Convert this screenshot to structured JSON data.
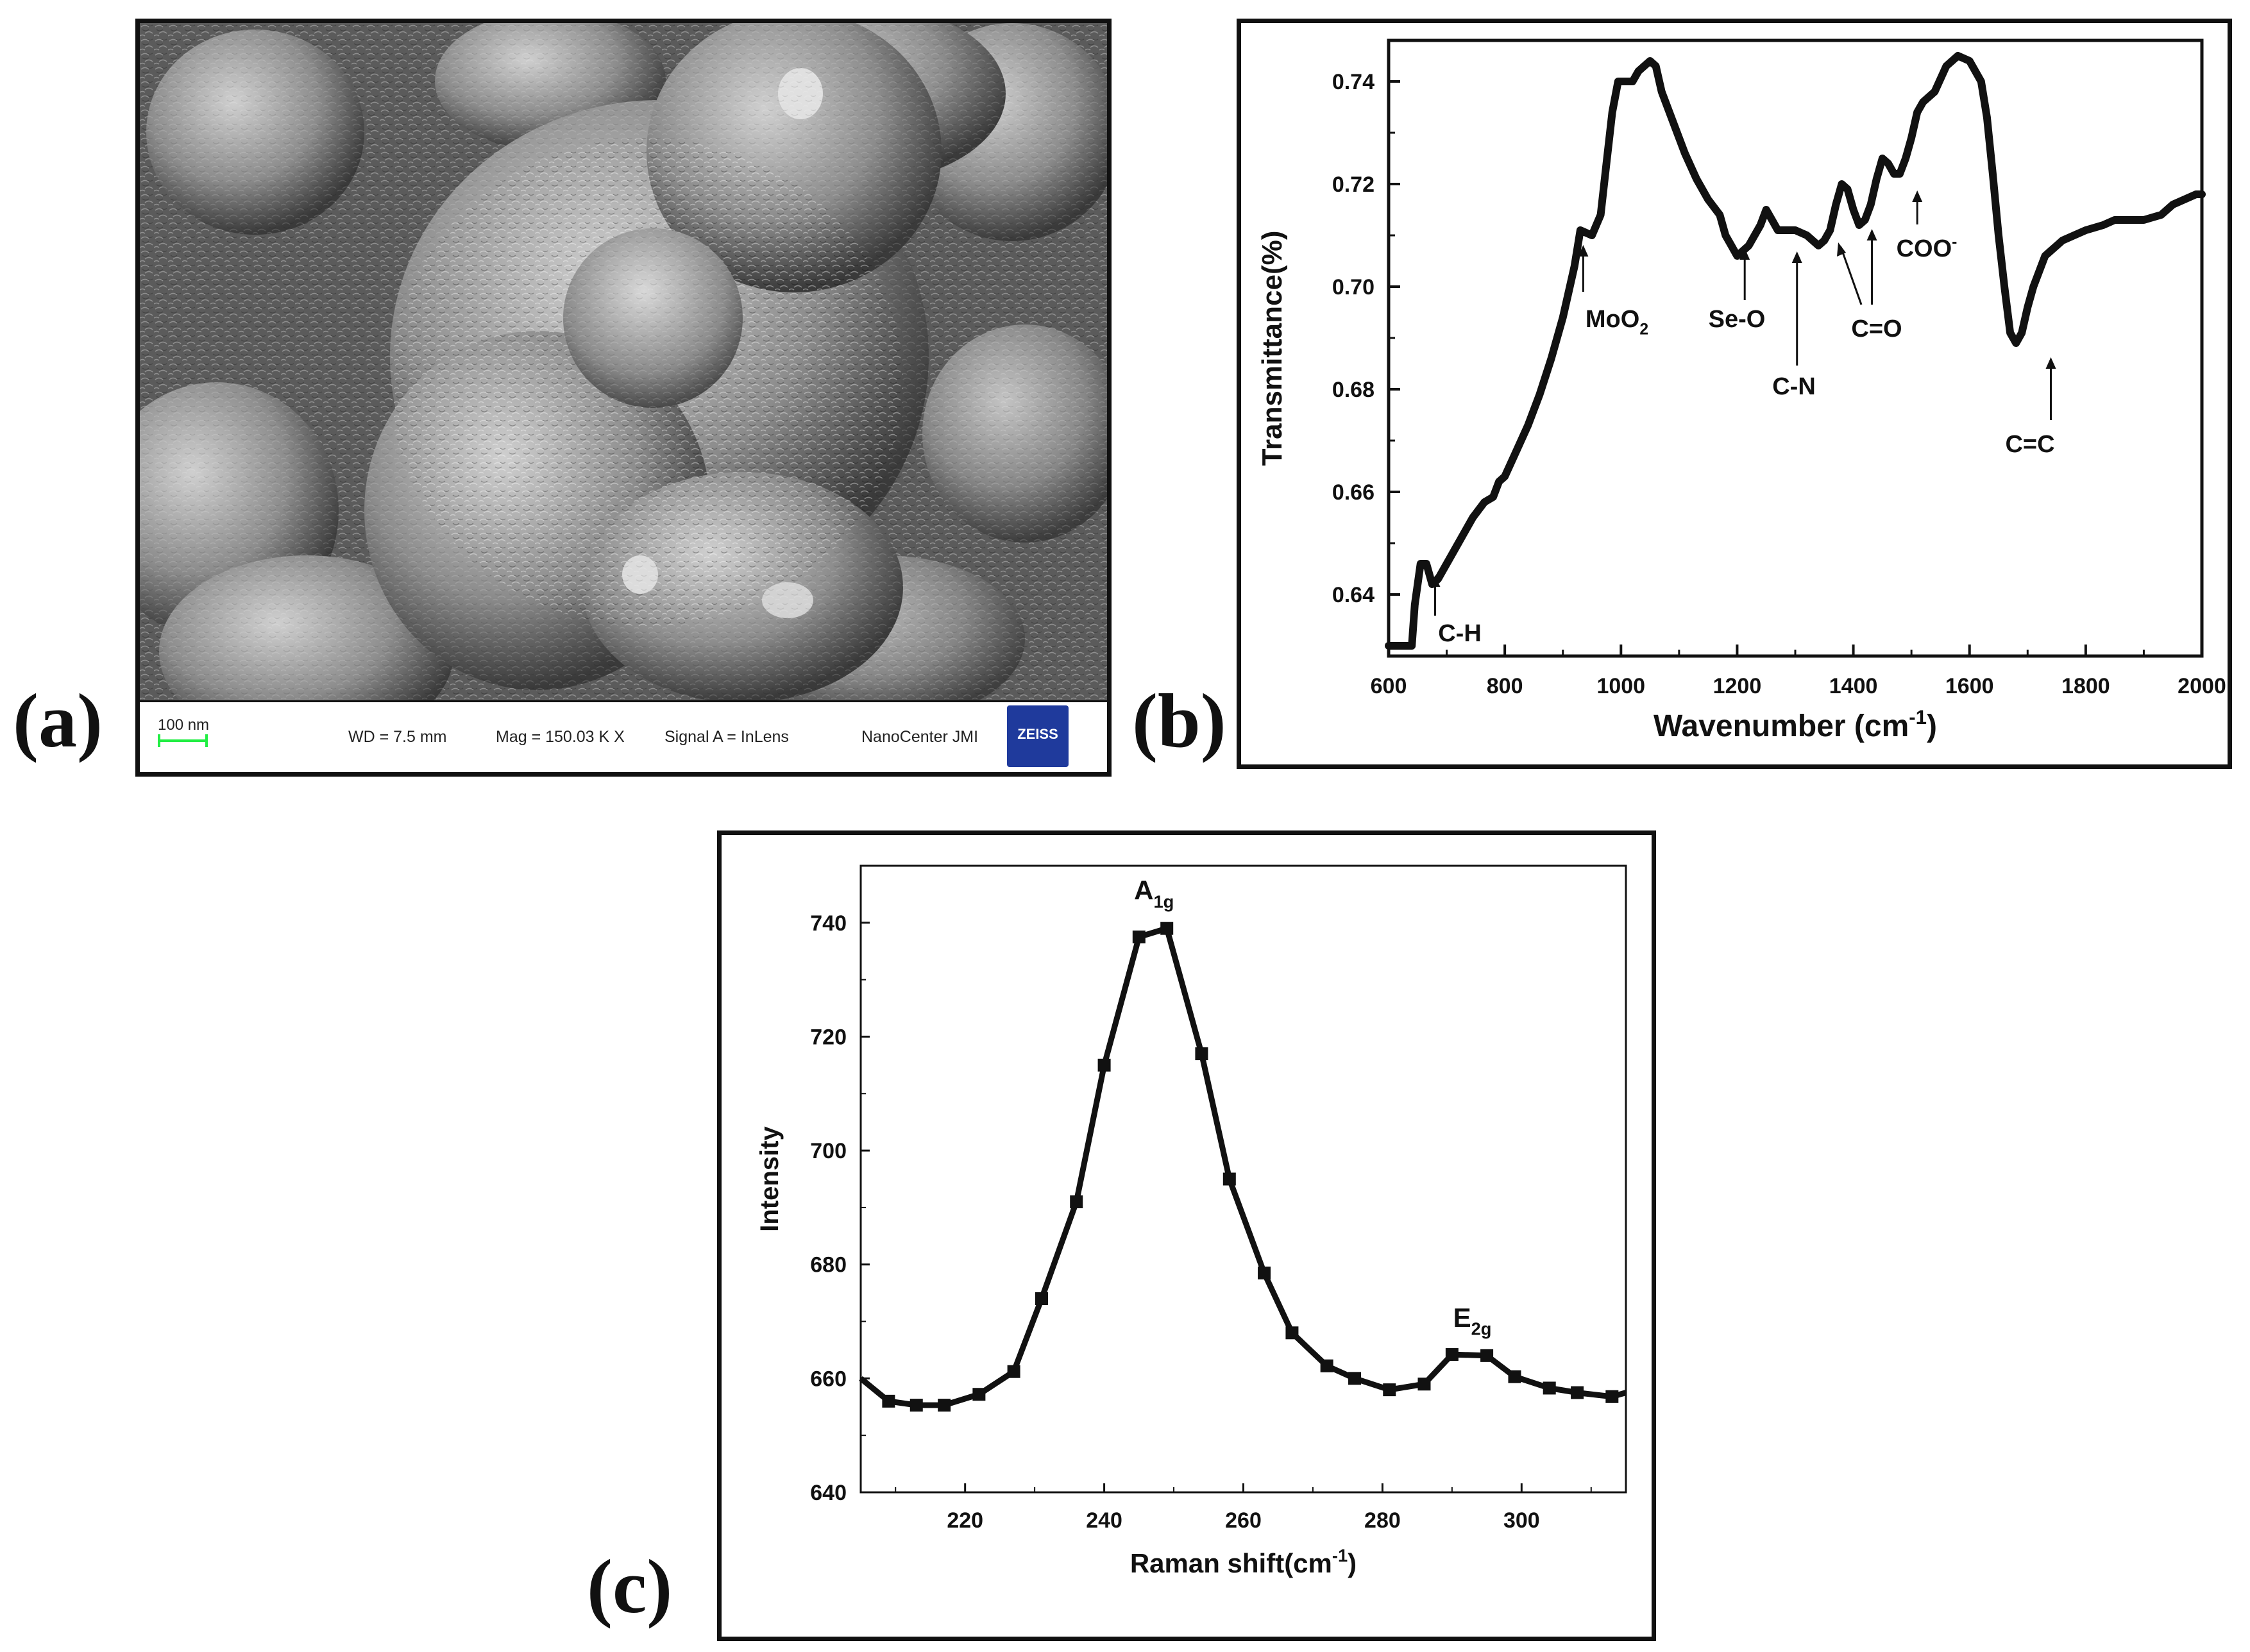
{
  "panels": {
    "a": {
      "letter": "(a)"
    },
    "b": {
      "letter": "(b)"
    },
    "c": {
      "letter": "(c)"
    }
  },
  "sem": {
    "scale_bar": "100 nm",
    "wd": "WD =  7.5 mm",
    "mag": "Mag =  150.03 K X",
    "signal": "Signal A = InLens",
    "center": "NanoCenter JMI",
    "logo": "ZEISS",
    "scale_bar_color": "#22ee44"
  },
  "chart_data": [
    {
      "type": "line",
      "panel": "b",
      "xlabel": "Wavenumber (cm",
      "xlabel_sup": "-1",
      "xlabel_end": ")",
      "ylabel": "Transmittance(%)",
      "xlim": [
        600,
        2000
      ],
      "ylim": [
        0.628,
        0.748
      ],
      "xticks": [
        600,
        800,
        1000,
        1200,
        1400,
        1600,
        1800,
        2000
      ],
      "yticks": [
        0.64,
        0.66,
        0.68,
        0.7,
        0.72,
        0.74
      ],
      "ytick_labels": [
        "0.64",
        "0.66",
        "0.68",
        "0.70",
        "0.72",
        "0.74"
      ],
      "x": [
        600,
        630,
        640,
        645,
        655,
        665,
        675,
        685,
        700,
        720,
        745,
        765,
        780,
        790,
        800,
        820,
        840,
        860,
        880,
        900,
        920,
        930,
        950,
        965,
        975,
        985,
        995,
        1005,
        1020,
        1030,
        1040,
        1050,
        1060,
        1070,
        1090,
        1110,
        1130,
        1150,
        1170,
        1180,
        1190,
        1200,
        1210,
        1220,
        1240,
        1250,
        1260,
        1270,
        1280,
        1290,
        1300,
        1320,
        1340,
        1350,
        1360,
        1370,
        1380,
        1390,
        1400,
        1410,
        1420,
        1430,
        1440,
        1450,
        1460,
        1470,
        1480,
        1490,
        1500,
        1510,
        1520,
        1540,
        1560,
        1580,
        1600,
        1620,
        1630,
        1640,
        1650,
        1660,
        1670,
        1680,
        1690,
        1700,
        1710,
        1720,
        1730,
        1740,
        1750,
        1760,
        1780,
        1800,
        1830,
        1850,
        1870,
        1900,
        1930,
        1950,
        1970,
        1990,
        2000
      ],
      "y": [
        0.63,
        0.63,
        0.63,
        0.638,
        0.646,
        0.646,
        0.642,
        0.643,
        0.646,
        0.65,
        0.655,
        0.658,
        0.659,
        0.662,
        0.663,
        0.668,
        0.673,
        0.679,
        0.686,
        0.694,
        0.704,
        0.711,
        0.71,
        0.714,
        0.724,
        0.734,
        0.74,
        0.74,
        0.74,
        0.742,
        0.743,
        0.744,
        0.743,
        0.738,
        0.732,
        0.726,
        0.721,
        0.717,
        0.714,
        0.71,
        0.708,
        0.706,
        0.707,
        0.708,
        0.712,
        0.715,
        0.713,
        0.711,
        0.711,
        0.711,
        0.711,
        0.71,
        0.708,
        0.709,
        0.711,
        0.716,
        0.72,
        0.719,
        0.715,
        0.712,
        0.713,
        0.716,
        0.721,
        0.725,
        0.724,
        0.722,
        0.722,
        0.725,
        0.729,
        0.734,
        0.736,
        0.738,
        0.743,
        0.745,
        0.744,
        0.74,
        0.733,
        0.722,
        0.71,
        0.7,
        0.691,
        0.689,
        0.691,
        0.696,
        0.7,
        0.703,
        0.706,
        0.707,
        0.708,
        0.709,
        0.71,
        0.711,
        0.712,
        0.713,
        0.713,
        0.713,
        0.714,
        0.716,
        0.717,
        0.718,
        0.718
      ],
      "annotations": [
        {
          "label": "C-H",
          "x": 680,
          "y": 0.641
        },
        {
          "label": "MoO",
          "sub": "2",
          "x": 935,
          "y": 0.71
        },
        {
          "label": "Se-O",
          "x": 1213,
          "y": 0.706
        },
        {
          "label": "C-N",
          "x": 1303,
          "y": 0.708
        },
        {
          "label": "C=O",
          "x": 1375,
          "y": 0.708
        },
        {
          "label": "",
          "x": 1432,
          "y": 0.712
        },
        {
          "label": "COO",
          "sup": "-",
          "x": 1510,
          "y": 0.724
        },
        {
          "label": "C=C",
          "x": 1740,
          "y": 0.689
        }
      ]
    },
    {
      "type": "line",
      "panel": "c",
      "xlabel": "Raman shift(cm",
      "xlabel_sup": "-1",
      "xlabel_end": ")",
      "ylabel": "Intensity",
      "xlim": [
        205,
        315
      ],
      "ylim": [
        640,
        750
      ],
      "xticks": [
        220,
        240,
        260,
        280,
        300
      ],
      "yticks": [
        640,
        660,
        680,
        700,
        720,
        740
      ],
      "x": [
        205,
        209,
        213,
        217,
        222,
        227,
        231,
        236,
        240,
        245,
        249,
        254,
        258,
        263,
        267,
        272,
        276,
        281,
        286,
        290,
        295,
        299,
        304,
        308,
        313,
        315
      ],
      "y": [
        660,
        656,
        655.3,
        655.3,
        657.2,
        661.2,
        674,
        691,
        715,
        737.5,
        739,
        717,
        695,
        678.5,
        668,
        662.2,
        660,
        658,
        659,
        664.2,
        664,
        660.3,
        658.3,
        657.5,
        656.8,
        657.5
      ],
      "markers": true,
      "annotations": [
        {
          "label": "A",
          "sub": "1g",
          "x": 249,
          "y": 739
        },
        {
          "label": "E",
          "sub": "2g",
          "x": 292,
          "y": 664
        }
      ]
    }
  ]
}
